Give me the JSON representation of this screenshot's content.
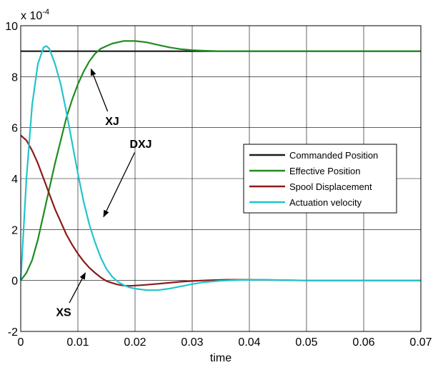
{
  "chart_data": {
    "type": "line",
    "xlabel": "time",
    "ylabel": "",
    "y_exponent_label": "x 10",
    "y_exponent_power": "-4",
    "xlim": [
      0,
      0.07
    ],
    "ylim": [
      -2,
      10
    ],
    "x_ticks": [
      {
        "value": 0,
        "label": "0"
      },
      {
        "value": 0.01,
        "label": "0.01"
      },
      {
        "value": 0.02,
        "label": "0.02"
      },
      {
        "value": 0.03,
        "label": "0.03"
      },
      {
        "value": 0.04,
        "label": "0.04"
      },
      {
        "value": 0.05,
        "label": "0.05"
      },
      {
        "value": 0.06,
        "label": "0.06"
      },
      {
        "value": 0.07,
        "label": "0.07"
      }
    ],
    "y_ticks": [
      {
        "value": -2,
        "label": "-2"
      },
      {
        "value": 0,
        "label": "0"
      },
      {
        "value": 2,
        "label": "2"
      },
      {
        "value": 4,
        "label": "4"
      },
      {
        "value": 6,
        "label": "6"
      },
      {
        "value": 8,
        "label": "8"
      },
      {
        "value": 10,
        "label": "10"
      }
    ],
    "grid": true,
    "legend_position": "right",
    "series": [
      {
        "name": "Commanded Position",
        "color": "#1a1a1a",
        "x": [
          0,
          0.01,
          0.02,
          0.03,
          0.04,
          0.05,
          0.06,
          0.07
        ],
        "y": [
          9,
          9,
          9,
          9,
          9,
          9,
          9,
          9
        ]
      },
      {
        "name": "Effective Position",
        "color": "#1f8c1f",
        "x": [
          0,
          0.001,
          0.002,
          0.003,
          0.004,
          0.005,
          0.006,
          0.007,
          0.008,
          0.009,
          0.01,
          0.011,
          0.012,
          0.013,
          0.014,
          0.015,
          0.016,
          0.017,
          0.018,
          0.019,
          0.02,
          0.022,
          0.024,
          0.026,
          0.028,
          0.03,
          0.032,
          0.035,
          0.04,
          0.05,
          0.06,
          0.07
        ],
        "y": [
          0,
          0.3,
          0.8,
          1.6,
          2.6,
          3.6,
          4.6,
          5.5,
          6.4,
          7.1,
          7.7,
          8.2,
          8.6,
          8.9,
          9.1,
          9.2,
          9.3,
          9.35,
          9.4,
          9.4,
          9.4,
          9.35,
          9.25,
          9.15,
          9.08,
          9.04,
          9.02,
          9.0,
          9.0,
          9.0,
          9.0,
          9.0
        ]
      },
      {
        "name": "Spool Displacement",
        "color": "#8c1a1a",
        "x": [
          0,
          0.001,
          0.002,
          0.003,
          0.004,
          0.005,
          0.006,
          0.007,
          0.008,
          0.009,
          0.01,
          0.011,
          0.012,
          0.013,
          0.014,
          0.015,
          0.016,
          0.017,
          0.018,
          0.019,
          0.02,
          0.022,
          0.024,
          0.026,
          0.028,
          0.03,
          0.033,
          0.036,
          0.04,
          0.05,
          0.06,
          0.07
        ],
        "y": [
          5.7,
          5.5,
          5.1,
          4.6,
          4.0,
          3.4,
          2.8,
          2.3,
          1.8,
          1.4,
          1.05,
          0.75,
          0.5,
          0.3,
          0.12,
          -0.02,
          -0.1,
          -0.16,
          -0.2,
          -0.21,
          -0.2,
          -0.17,
          -0.13,
          -0.09,
          -0.05,
          -0.02,
          0.01,
          0.03,
          0.03,
          0.0,
          0.0,
          0.0
        ]
      },
      {
        "name": "Actuation velocity",
        "color": "#22c4cc",
        "x": [
          0,
          0.001,
          0.002,
          0.003,
          0.004,
          0.0045,
          0.005,
          0.006,
          0.007,
          0.008,
          0.009,
          0.01,
          0.011,
          0.012,
          0.013,
          0.014,
          0.015,
          0.016,
          0.017,
          0.018,
          0.019,
          0.02,
          0.022,
          0.024,
          0.026,
          0.028,
          0.03,
          0.032,
          0.035,
          0.038,
          0.042,
          0.05,
          0.06,
          0.07
        ],
        "y": [
          0,
          4.0,
          6.9,
          8.5,
          9.15,
          9.2,
          9.1,
          8.5,
          7.7,
          6.6,
          5.4,
          4.2,
          3.1,
          2.2,
          1.5,
          0.9,
          0.45,
          0.15,
          -0.05,
          -0.18,
          -0.27,
          -0.32,
          -0.38,
          -0.38,
          -0.32,
          -0.23,
          -0.14,
          -0.07,
          -0.01,
          0.02,
          0.03,
          0.0,
          0.0,
          0.0
        ]
      }
    ],
    "annotations": [
      {
        "text": "XJ",
        "target": [
          0.0123,
          8.3
        ],
        "anchor": [
          0.016,
          6.1
        ]
      },
      {
        "text": "DXJ",
        "target": [
          0.0145,
          2.5
        ],
        "anchor": [
          0.021,
          5.2
        ]
      },
      {
        "text": "XS",
        "target": [
          0.0113,
          0.3
        ],
        "anchor": [
          0.0075,
          -1.4
        ]
      }
    ]
  }
}
